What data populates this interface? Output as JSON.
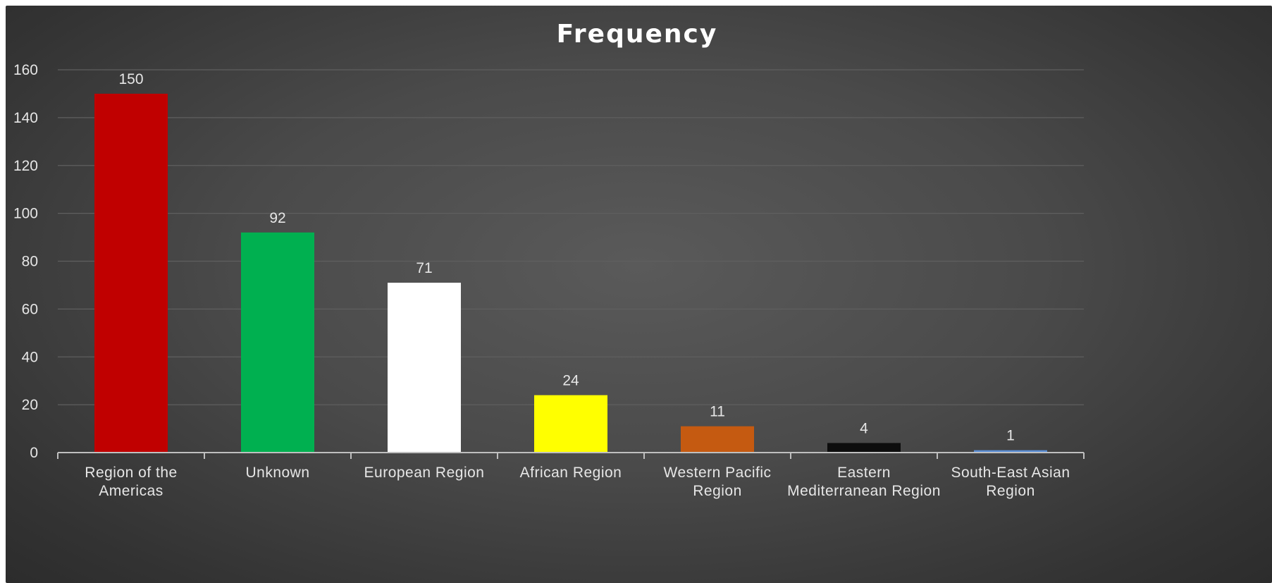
{
  "chart_data": {
    "type": "bar",
    "title": "Frequency",
    "xlabel": "",
    "ylabel": "",
    "categories": [
      "Region of the Americas",
      "Unknown",
      "European Region",
      "African Region",
      "Western Pacific Region",
      "Eastern Mediterranean Region",
      "South-East Asian Region"
    ],
    "values": [
      150,
      92,
      71,
      24,
      11,
      4,
      1
    ],
    "data_labels": [
      "150",
      "92",
      "71",
      "24",
      "11",
      "4",
      "1"
    ],
    "bar_colors": [
      "#c00000",
      "#00b050",
      "#ffffff",
      "#ffff00",
      "#c55a11",
      "#0d0d0d",
      "#5b8fd6"
    ],
    "ylim": [
      0,
      160
    ],
    "yticks": [
      0,
      20,
      40,
      60,
      80,
      100,
      120,
      140,
      160
    ],
    "ytick_labels": [
      "0",
      "20",
      "40",
      "60",
      "80",
      "100",
      "120",
      "140",
      "160"
    ],
    "grid": true,
    "legend": "none",
    "background": "#4a4a4a",
    "gridline_color": "#5f5f5f",
    "axis_color": "#bfbfbf",
    "text_color": "#e6e6e6"
  }
}
